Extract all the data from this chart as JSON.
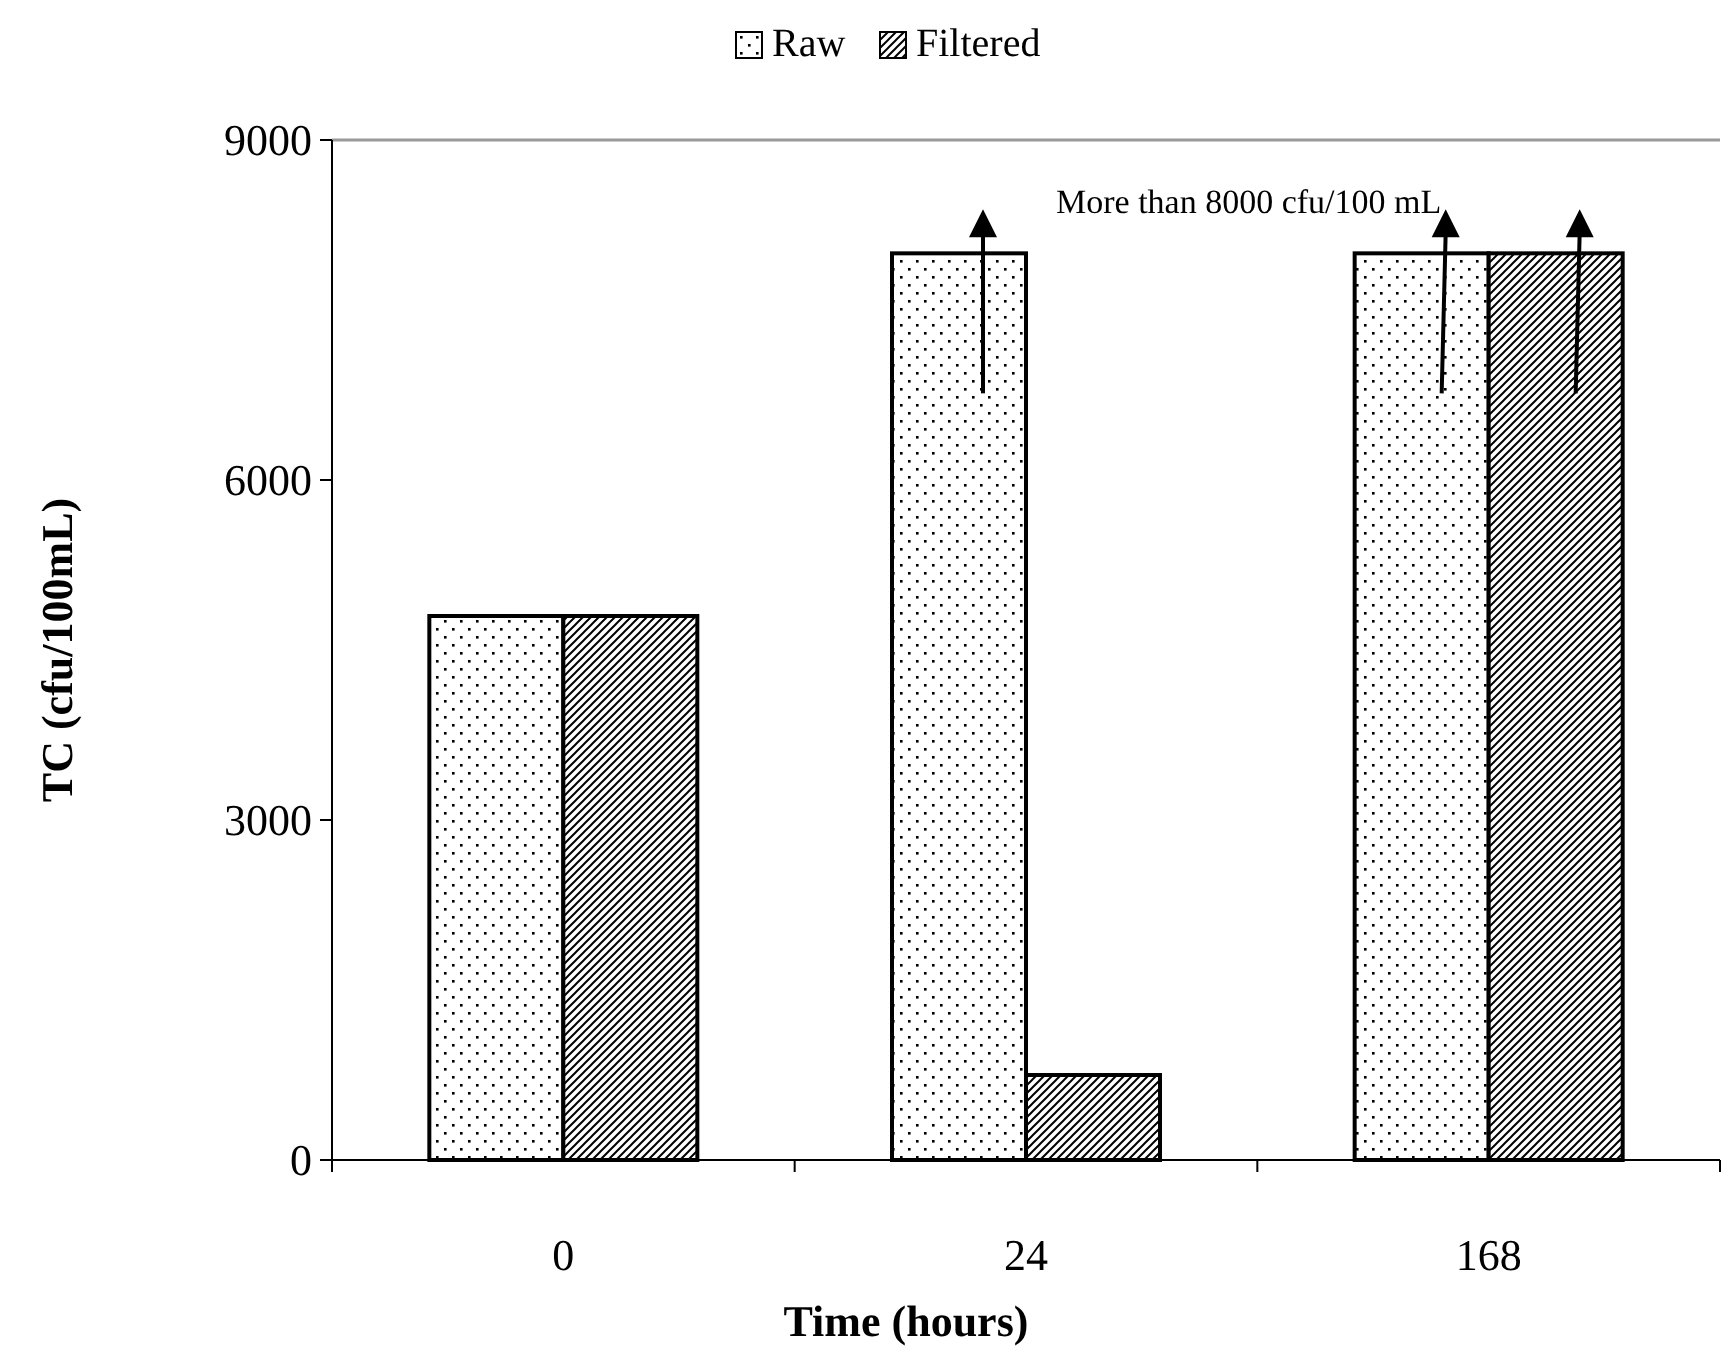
{
  "chart_data": {
    "type": "bar",
    "xlabel": "Time (hours)",
    "ylabel": "TC (cfu/100mL)",
    "categories": [
      "0",
      "24",
      "168"
    ],
    "series": [
      {
        "name": "Raw",
        "color": "#000000",
        "values": [
          4800,
          8000,
          8000
        ]
      },
      {
        "name": "Filtered",
        "color": "#000000",
        "values": [
          4800,
          750,
          8000
        ]
      }
    ],
    "ylim": [
      0,
      9000
    ],
    "yticks": [
      0,
      3000,
      6000,
      9000
    ],
    "grid": false,
    "legend": "top",
    "annotations": [
      "More than 8000 cfu/100 mL"
    ]
  }
}
